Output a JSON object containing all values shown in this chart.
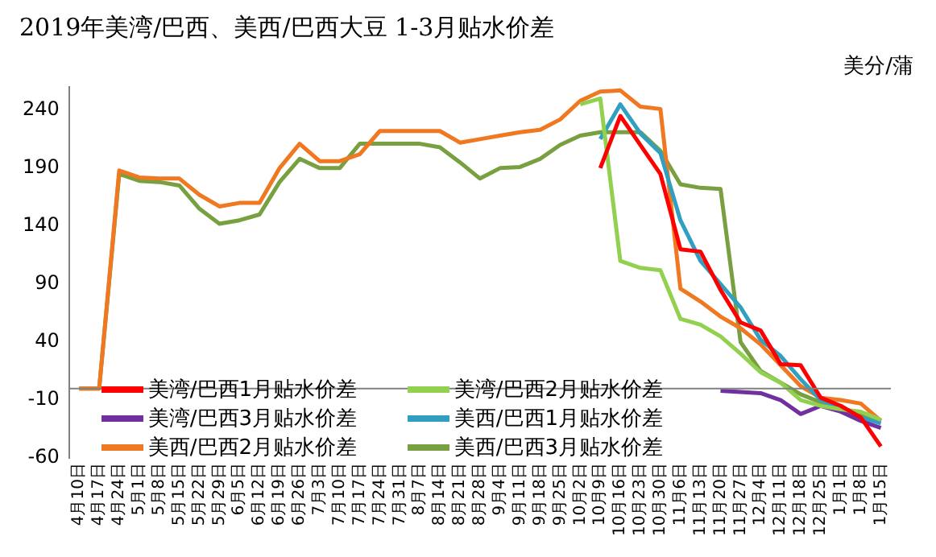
{
  "chart_data": {
    "type": "line",
    "title": "2019年美湾/巴西、美西/巴西大豆 1-3月贴水价差",
    "ylabel": "美分/蒲",
    "categories": [
      "4月10日",
      "4月17日",
      "4月24日",
      "5月1日",
      "5月8日",
      "5月15日",
      "5月22日",
      "5月29日",
      "6月5日",
      "6月12日",
      "6月19日",
      "6月26日",
      "7月3日",
      "7月10日",
      "7月17日",
      "7月24日",
      "7月31日",
      "8月7日",
      "8月14日",
      "8月21日",
      "8月28日",
      "9月4日",
      "9月11日",
      "9月18日",
      "9月25日",
      "10月2日",
      "10月9日",
      "10月16日",
      "10月23日",
      "10月30日",
      "11月6日",
      "11月13日",
      "11月20日",
      "11月27日",
      "12月4日",
      "12月11日",
      "12月18日",
      "12月25日",
      "1月1日",
      "1月8日",
      "1月15日"
    ],
    "series": [
      {
        "name": "美湾/巴西1月贴水价差",
        "color": "#ff0000",
        "values": [
          null,
          null,
          null,
          null,
          null,
          null,
          null,
          null,
          null,
          null,
          null,
          null,
          null,
          null,
          null,
          null,
          null,
          null,
          null,
          null,
          null,
          null,
          null,
          null,
          null,
          null,
          190,
          235,
          210,
          185,
          120,
          118,
          85,
          57,
          50,
          21,
          20,
          -8,
          -15,
          -25,
          -50
        ]
      },
      {
        "name": "美湾/巴西2月贴水价差",
        "color": "#92d050",
        "values": [
          null,
          null,
          null,
          null,
          null,
          null,
          null,
          null,
          null,
          null,
          null,
          null,
          null,
          null,
          null,
          null,
          null,
          null,
          null,
          null,
          null,
          null,
          null,
          null,
          null,
          245,
          250,
          110,
          104,
          102,
          60,
          55,
          45,
          30,
          14,
          5,
          -10,
          -15,
          -18,
          -20,
          -27
        ]
      },
      {
        "name": "美湾/巴西3月贴水价差",
        "color": "#7030a0",
        "values": [
          null,
          null,
          null,
          null,
          null,
          null,
          null,
          null,
          null,
          null,
          null,
          null,
          null,
          null,
          null,
          null,
          null,
          null,
          null,
          null,
          null,
          null,
          null,
          null,
          null,
          null,
          null,
          null,
          null,
          null,
          null,
          null,
          -2,
          -3,
          -4,
          -10,
          -22,
          -15,
          -20,
          -28,
          -34
        ]
      },
      {
        "name": "美西/巴西1月贴水价差",
        "color": "#31a0c0",
        "values": [
          null,
          null,
          null,
          null,
          null,
          null,
          null,
          null,
          null,
          null,
          null,
          null,
          null,
          null,
          null,
          null,
          null,
          null,
          null,
          null,
          null,
          null,
          null,
          null,
          null,
          null,
          215,
          245,
          220,
          203,
          145,
          110,
          90,
          70,
          42,
          28,
          8,
          -10,
          -18,
          -25,
          -30
        ]
      },
      {
        "name": "美西/巴西2月贴水价差",
        "color": "#f07820",
        "values": [
          0,
          0,
          188,
          182,
          181,
          181,
          167,
          157,
          160,
          160,
          190,
          211,
          196,
          196,
          202,
          222,
          222,
          222,
          222,
          212,
          215,
          218,
          221,
          223,
          232,
          248,
          256,
          257,
          243,
          241,
          86,
          75,
          62,
          52,
          38,
          20,
          2,
          -8,
          -10,
          -13,
          -28
        ]
      },
      {
        "name": "美西/巴西3月贴水价差",
        "color": "#78a040",
        "values": [
          0,
          0,
          185,
          179,
          178,
          175,
          155,
          142,
          145,
          150,
          178,
          198,
          190,
          190,
          211,
          211,
          211,
          211,
          208,
          195,
          181,
          190,
          191,
          198,
          210,
          218,
          221,
          221,
          221,
          205,
          176,
          173,
          172,
          40,
          15,
          5,
          -5,
          -12,
          -18,
          -22,
          -28
        ]
      }
    ],
    "ylim": [
      -60,
      260
    ],
    "yticks": [
      -60,
      -10,
      40,
      90,
      140,
      190,
      240
    ],
    "grid": false,
    "legend": "bottom left",
    "marker": "none",
    "line_style": "solid"
  }
}
